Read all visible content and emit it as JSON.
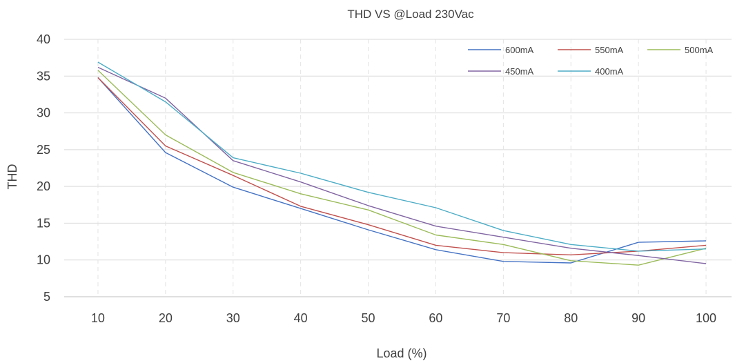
{
  "chart_data": {
    "type": "line",
    "title": "THD VS @Load 230Vac",
    "xlabel": "Load (%)",
    "ylabel": "THD",
    "x": [
      10,
      20,
      30,
      40,
      50,
      60,
      70,
      80,
      90,
      100
    ],
    "ylim": [
      5,
      40
    ],
    "yticks": [
      5,
      10,
      15,
      20,
      25,
      30,
      35,
      40
    ],
    "grid": {
      "horizontal": true,
      "vertical_dashed": true
    },
    "legend_position": "top-right",
    "series": [
      {
        "name": "600mA",
        "color": "#4472C4",
        "values": [
          34.8,
          24.6,
          19.9,
          17.0,
          14.1,
          11.4,
          9.8,
          9.6,
          12.4,
          12.6
        ]
      },
      {
        "name": "550mA",
        "color": "#C0504D",
        "values": [
          34.8,
          25.5,
          21.5,
          17.3,
          14.8,
          12.0,
          11.0,
          10.7,
          11.2,
          12.0
        ]
      },
      {
        "name": "500mA",
        "color": "#9BBB59",
        "values": [
          35.8,
          27.0,
          21.9,
          19.0,
          16.8,
          13.4,
          12.1,
          9.9,
          9.3,
          11.6
        ]
      },
      {
        "name": "450mA",
        "color": "#8064A2",
        "values": [
          36.2,
          32.0,
          23.5,
          20.6,
          17.4,
          14.6,
          13.1,
          11.6,
          10.6,
          9.5
        ]
      },
      {
        "name": "400mA",
        "color": "#4BACC6",
        "values": [
          36.9,
          31.5,
          23.9,
          21.8,
          19.2,
          17.1,
          14.0,
          12.1,
          11.2,
          11.5
        ]
      }
    ]
  }
}
